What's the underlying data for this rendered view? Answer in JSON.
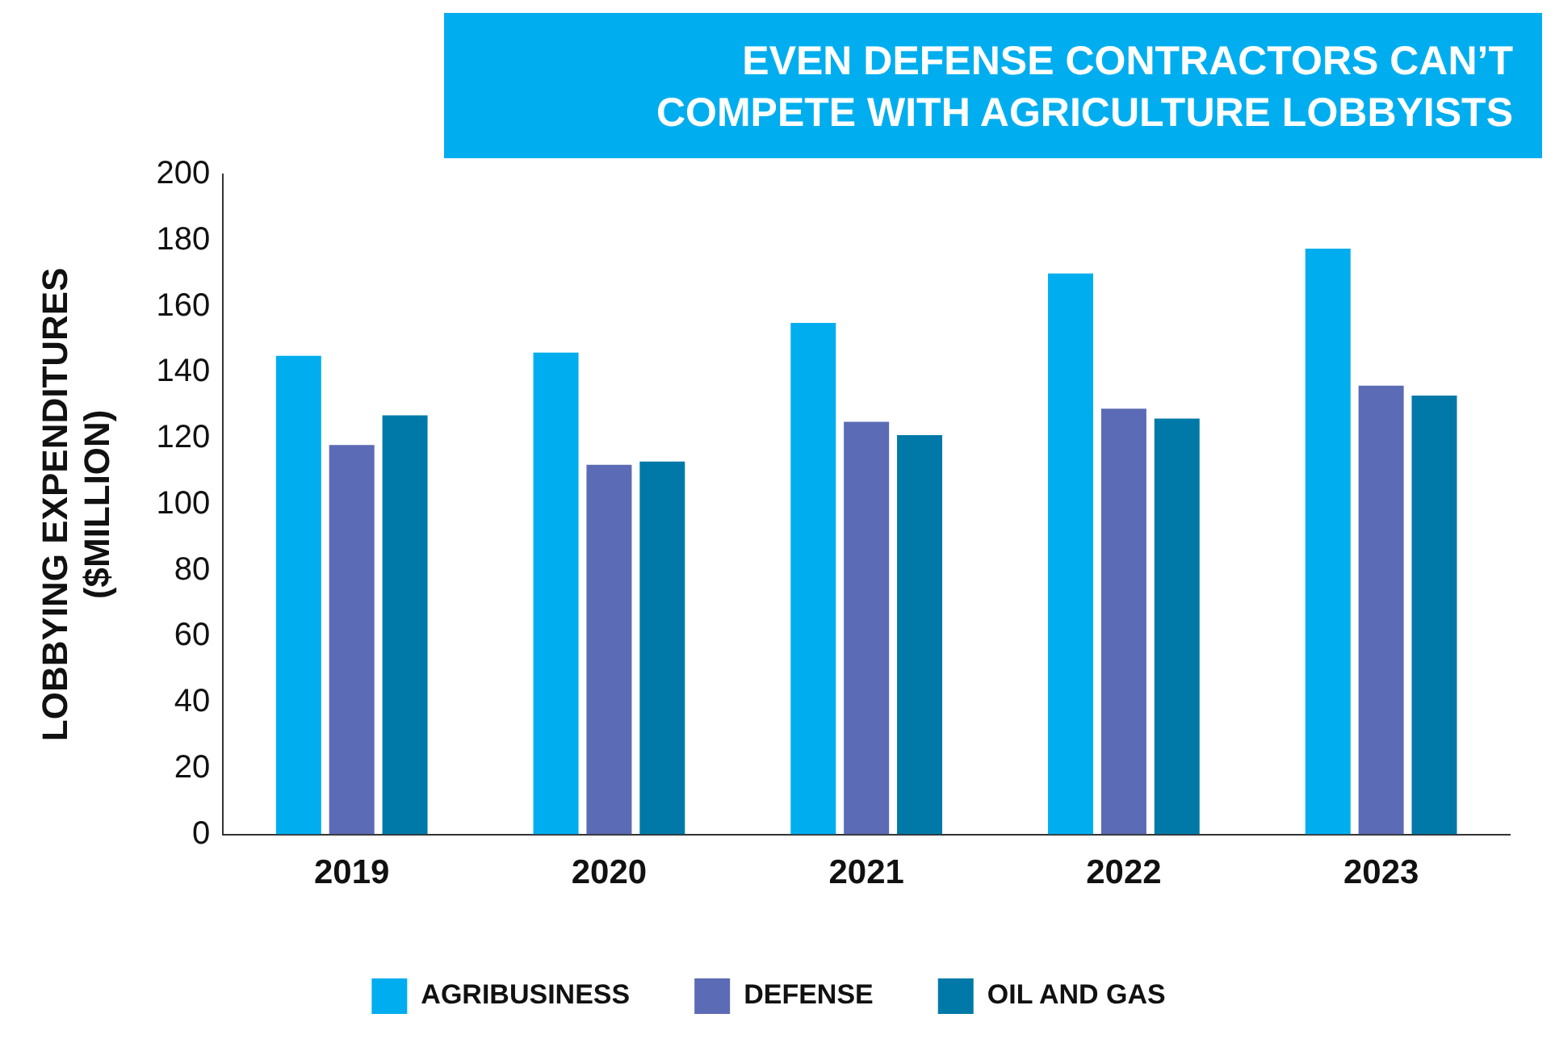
{
  "chart_data": {
    "type": "bar",
    "title": "EVEN DEFENSE CONTRACTORS CAN’T\nCOMPETE WITH AGRICULTURE LOBBYISTS",
    "ylabel": "LOBBYING EXPENDITURES\n($MILLION)",
    "categories": [
      "2019",
      "2020",
      "2021",
      "2022",
      "2023"
    ],
    "series": [
      {
        "name": "AGRIBUSINESS",
        "color": "#00aeef",
        "values": [
          145,
          146,
          155,
          170,
          177.5
        ]
      },
      {
        "name": "DEFENSE",
        "color": "#5b6bb5",
        "values": [
          118,
          112,
          125,
          129,
          136
        ]
      },
      {
        "name": "OIL AND GAS",
        "color": "#0079a8",
        "values": [
          127,
          113,
          121,
          126,
          133
        ]
      }
    ],
    "ylim": [
      0,
      200
    ],
    "yticks": [
      0,
      20,
      40,
      60,
      80,
      100,
      120,
      140,
      160,
      180,
      200
    ],
    "grid": false,
    "legend": "bottom"
  }
}
